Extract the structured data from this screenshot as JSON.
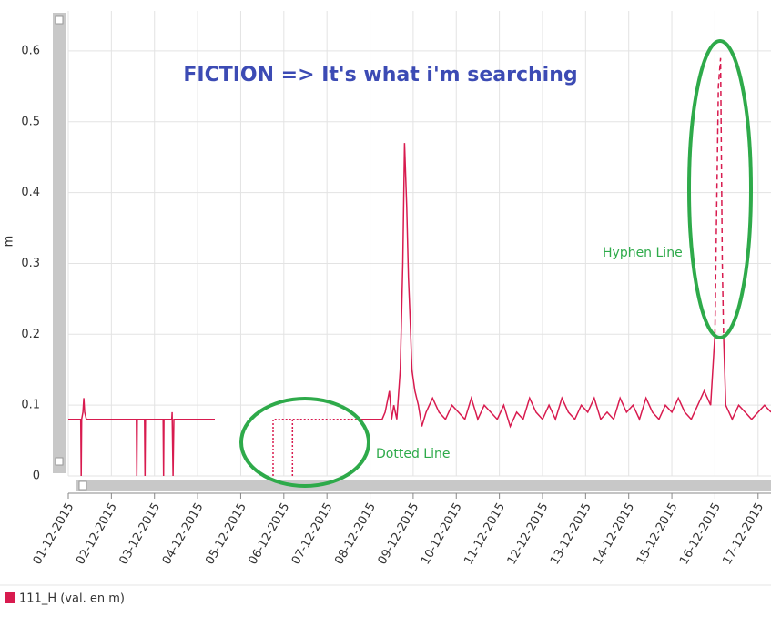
{
  "chart_data": {
    "type": "line",
    "title": "FICTION => It's what i'm searching",
    "y_label": "m",
    "annotations": [
      "Hyphen Line",
      "Dotted Line"
    ],
    "xlim": [
      0,
      16.3
    ],
    "ylim": [
      0,
      0.65
    ],
    "yticks": [
      0,
      0.1,
      0.2,
      0.3,
      0.4,
      0.5,
      0.6
    ],
    "xticks": [
      {
        "value": 0,
        "label": "01-12-2015"
      },
      {
        "value": 1,
        "label": "02-12-2015"
      },
      {
        "value": 2,
        "label": "03-12-2015"
      },
      {
        "value": 3,
        "label": "04-12-2015"
      },
      {
        "value": 4,
        "label": "05-12-2015"
      },
      {
        "value": 5,
        "label": "06-12-2015"
      },
      {
        "value": 6,
        "label": "07-12-2015"
      },
      {
        "value": 7,
        "label": "08-12-2015"
      },
      {
        "value": 8,
        "label": "09-12-2015"
      },
      {
        "value": 9,
        "label": "10-12-2015"
      },
      {
        "value": 10,
        "label": "11-12-2015"
      },
      {
        "value": 11,
        "label": "12-12-2015"
      },
      {
        "value": 12,
        "label": "13-12-2015"
      },
      {
        "value": 13,
        "label": "14-12-2015"
      },
      {
        "value": 14,
        "label": "15-12-2015"
      },
      {
        "value": 15,
        "label": "16-12-2015"
      },
      {
        "value": 16,
        "label": "17-12-2015"
      }
    ],
    "grid": true,
    "series": [
      {
        "name": "111_H (val. en m)",
        "color": "#d81b4f",
        "dash": "solid",
        "x": [
          0,
          0.29,
          0.3,
          0.31,
          0.34,
          0.36,
          0.38,
          0.42,
          1.58,
          1.59,
          1.6,
          1.77,
          1.78,
          1.79,
          2.2,
          2.21,
          2.22,
          2.4,
          2.41,
          2.43,
          2.45,
          3.4,
          null,
          6.75,
          7.28,
          7.35,
          7.45,
          7.5,
          7.55,
          7.62,
          7.7,
          7.76,
          7.8,
          7.85,
          7.89,
          7.93,
          7.97,
          8.04,
          8.12,
          8.2,
          8.3,
          8.45,
          8.6,
          8.75,
          8.9,
          9.05,
          9.2,
          9.35,
          9.5,
          9.65,
          9.8,
          9.95,
          10.1,
          10.25,
          10.4,
          10.55,
          10.7,
          10.85,
          11.0,
          11.15,
          11.3,
          11.45,
          11.6,
          11.75,
          11.9,
          12.05,
          12.2,
          12.35,
          12.5,
          12.65,
          12.8,
          12.95,
          13.1,
          13.25,
          13.4,
          13.55,
          13.7,
          13.85,
          14.0,
          14.15,
          14.3,
          14.45,
          14.6,
          14.75,
          14.9,
          15.0,
          null,
          15.2,
          15.25,
          15.4,
          15.55,
          15.7,
          15.85,
          16.0,
          16.15,
          16.3
        ],
        "values": [
          0.08,
          0.08,
          0,
          0.08,
          0.09,
          0.11,
          0.09,
          0.08,
          0.08,
          0,
          0.08,
          0.08,
          0,
          0.08,
          0.08,
          0,
          0.08,
          0.08,
          0.09,
          0,
          0.08,
          0.08,
          null,
          0.08,
          0.08,
          0.09,
          0.12,
          0.08,
          0.1,
          0.08,
          0.15,
          0.3,
          0.47,
          0.38,
          0.28,
          0.22,
          0.15,
          0.12,
          0.1,
          0.07,
          0.09,
          0.11,
          0.09,
          0.08,
          0.1,
          0.09,
          0.08,
          0.11,
          0.08,
          0.1,
          0.09,
          0.08,
          0.1,
          0.07,
          0.09,
          0.08,
          0.11,
          0.09,
          0.08,
          0.1,
          0.08,
          0.11,
          0.09,
          0.08,
          0.1,
          0.09,
          0.11,
          0.08,
          0.09,
          0.08,
          0.11,
          0.09,
          0.1,
          0.08,
          0.11,
          0.09,
          0.08,
          0.1,
          0.09,
          0.11,
          0.09,
          0.08,
          0.1,
          0.12,
          0.1,
          0.2,
          null,
          0.2,
          0.1,
          0.08,
          0.1,
          0.09,
          0.08,
          0.09,
          0.1,
          0.09
        ]
      },
      {
        "color": "#d81b4f",
        "dash": "dotted",
        "x": [
          4.75,
          4.75,
          6.75,
          null,
          5.2,
          5.2
        ],
        "values": [
          0,
          0.08,
          0.08,
          null,
          0,
          0.08
        ]
      },
      {
        "color": "#d81b4f",
        "dash": "dashed",
        "x": [
          15.0,
          15.08,
          15.13,
          15.17,
          15.2
        ],
        "values": [
          0.2,
          0.55,
          0.59,
          0.3,
          0.2
        ]
      }
    ]
  }
}
